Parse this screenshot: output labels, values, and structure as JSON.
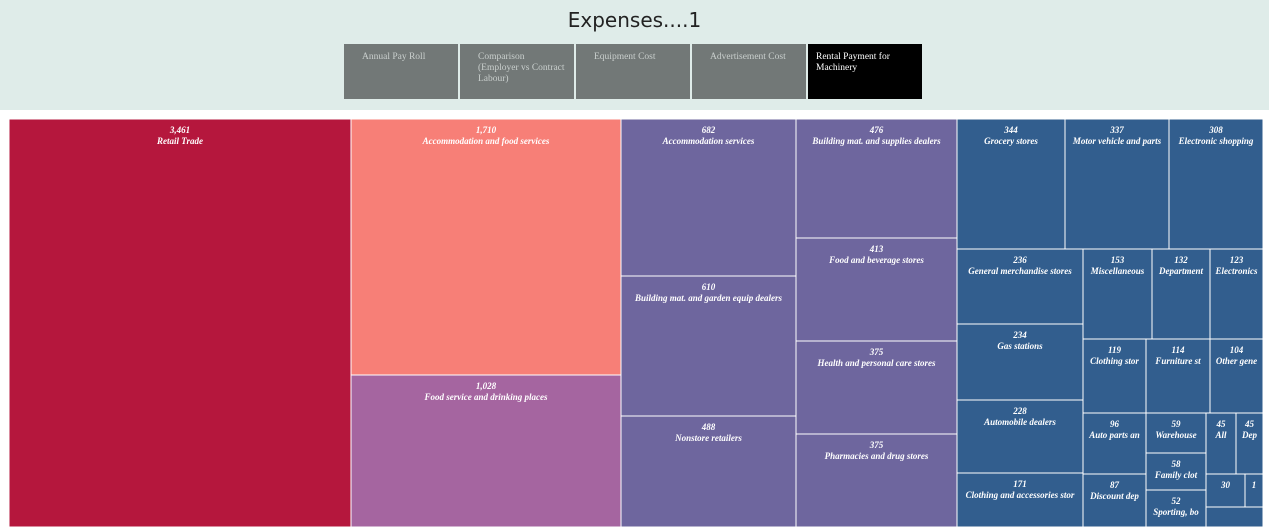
{
  "title": "Expenses....1",
  "tabs": [
    {
      "label": "Annual Pay Roll",
      "active": false
    },
    {
      "label": "Comparison (Employer vs Contract Labour)",
      "active": false
    },
    {
      "label": "Equipment Cost",
      "active": false
    },
    {
      "label": "Advertisement Cost",
      "active": false
    },
    {
      "label": "Rental Payment for Machinery",
      "active": true
    }
  ],
  "chart_data": {
    "type": "treemap",
    "title": "",
    "colors": {
      "retail": "#b5173d",
      "accommodation": "#f77f77",
      "food_service": "#a565a0",
      "purple": "#6e669e",
      "blue": "#325e8e"
    },
    "nodes": [
      {
        "label": "Retail Trade",
        "value": 3461,
        "value_label": "3,461",
        "color": "retail"
      },
      {
        "label": "Accommodation and food services",
        "value": 1710,
        "value_label": "1,710",
        "color": "accommodation"
      },
      {
        "label": "Food service and drinking places",
        "value": 1028,
        "value_label": "1,028",
        "color": "food_service"
      },
      {
        "label": "Accommodation services",
        "value": 682,
        "value_label": "682",
        "color": "purple"
      },
      {
        "label": "Building mat. and garden equip dealers",
        "value": 610,
        "value_label": "610",
        "color": "purple"
      },
      {
        "label": "Nonstore retailers",
        "value": 488,
        "value_label": "488",
        "color": "purple"
      },
      {
        "label": "Building mat. and supplies dealers",
        "value": 476,
        "value_label": "476",
        "color": "purple"
      },
      {
        "label": "Food and beverage stores",
        "value": 413,
        "value_label": "413",
        "color": "purple"
      },
      {
        "label": "Health and personal care stores",
        "value": 375,
        "value_label": "375",
        "color": "purple"
      },
      {
        "label": "Pharmacies and drug stores",
        "value": 375,
        "value_label": "375",
        "color": "purple"
      },
      {
        "label": "Grocery stores",
        "value": 344,
        "value_label": "344",
        "color": "blue"
      },
      {
        "label": "Motor vehicle and parts",
        "value": 337,
        "value_label": "337",
        "color": "blue"
      },
      {
        "label": "Electronic shopping",
        "value": 308,
        "value_label": "308",
        "color": "blue"
      },
      {
        "label": "General merchandise stores",
        "value": 236,
        "value_label": "236",
        "color": "blue"
      },
      {
        "label": "Gas stations",
        "value": 234,
        "value_label": "234",
        "color": "blue"
      },
      {
        "label": "Automobile dealers",
        "value": 228,
        "value_label": "228",
        "color": "blue"
      },
      {
        "label": "Clothing and accessories stor",
        "value": 171,
        "value_label": "171",
        "color": "blue"
      },
      {
        "label": "Miscellaneous",
        "value": 153,
        "value_label": "153",
        "color": "blue"
      },
      {
        "label": "Department",
        "value": 132,
        "value_label": "132",
        "color": "blue"
      },
      {
        "label": "Electronics",
        "value": 123,
        "value_label": "123",
        "color": "blue"
      },
      {
        "label": "Clothing stor",
        "value": 119,
        "value_label": "119",
        "color": "blue"
      },
      {
        "label": "Furniture st",
        "value": 114,
        "value_label": "114",
        "color": "blue"
      },
      {
        "label": "Other gene",
        "value": 104,
        "value_label": "104",
        "color": "blue"
      },
      {
        "label": "Auto parts an",
        "value": 96,
        "value_label": "96",
        "color": "blue"
      },
      {
        "label": "Discount dep",
        "value": 87,
        "value_label": "87",
        "color": "blue"
      },
      {
        "label": "Warehouse",
        "value": 59,
        "value_label": "59",
        "color": "blue"
      },
      {
        "label": "Family clot",
        "value": 58,
        "value_label": "58",
        "color": "blue"
      },
      {
        "label": "Sporting, bo",
        "value": 52,
        "value_label": "52",
        "color": "blue"
      },
      {
        "label": "All",
        "value": 45,
        "value_label": "45",
        "color": "blue"
      },
      {
        "label": "Dep",
        "value": 45,
        "value_label": "45",
        "color": "blue"
      },
      {
        "label": "",
        "value": 30,
        "value_label": "30",
        "color": "blue"
      },
      {
        "label": "",
        "value": 1,
        "value_label": "1",
        "color": "blue"
      },
      {
        "label": "",
        "value": 1,
        "value_label": "",
        "color": "blue"
      }
    ]
  }
}
